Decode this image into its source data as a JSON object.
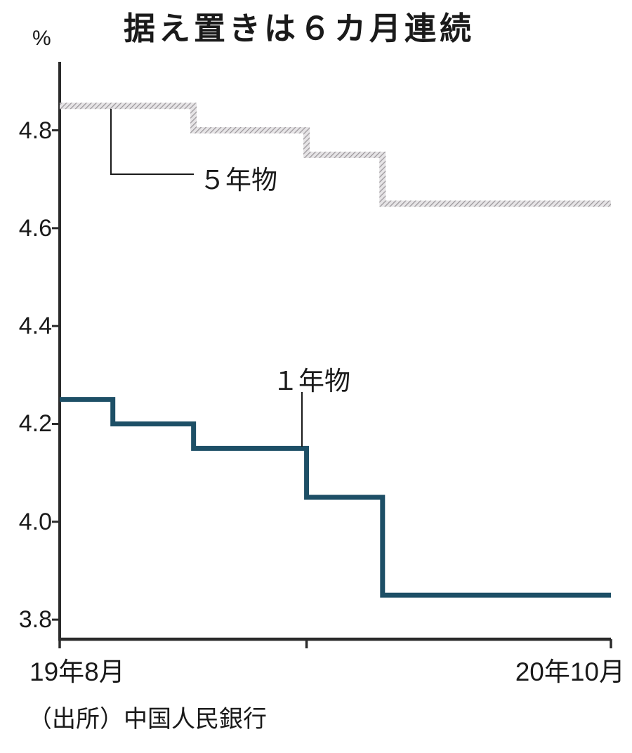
{
  "chart_data": {
    "type": "line",
    "step": true,
    "title": "据え置きは６カ月連続",
    "ylabel": "%",
    "source": "（出所）中国人民銀行",
    "legend_position": "inline-annotations",
    "grid": false,
    "x_axis": {
      "start_label": "19年8月",
      "end_label": "20年10月",
      "month_span": 14,
      "tick_positions": [
        0,
        6.27,
        14
      ]
    },
    "y_axis": {
      "range": [
        3.76,
        4.94
      ],
      "ticks": [
        {
          "value": 4.8,
          "label": "4.8"
        },
        {
          "value": 4.6,
          "label": "4.6"
        },
        {
          "value": 4.4,
          "label": "4.4"
        },
        {
          "value": 4.2,
          "label": "4.2"
        },
        {
          "value": 4.0,
          "label": "4.0"
        },
        {
          "value": 3.8,
          "label": "3.8"
        }
      ]
    },
    "series": [
      {
        "name": "５年物",
        "style": "hatched",
        "color": "#a8a4a8",
        "steps": [
          {
            "x": 0,
            "value": 4.85
          },
          {
            "x": 3.4,
            "value": 4.8
          },
          {
            "x": 6.27,
            "value": 4.75
          },
          {
            "x": 8.2,
            "value": 4.65
          }
        ],
        "x_end": 14
      },
      {
        "name": "１年物",
        "style": "solid",
        "color": "#1d4f66",
        "steps": [
          {
            "x": 0,
            "value": 4.25
          },
          {
            "x": 1.35,
            "value": 4.2
          },
          {
            "x": 3.4,
            "value": 4.15
          },
          {
            "x": 6.27,
            "value": 4.05
          },
          {
            "x": 8.2,
            "value": 3.85
          }
        ],
        "x_end": 14
      }
    ],
    "colors": {
      "axis": "#2b2b2b",
      "text": "#1a1a1a",
      "series_1y": "#1d4f66",
      "series_5y": "#a8a4a8"
    }
  }
}
